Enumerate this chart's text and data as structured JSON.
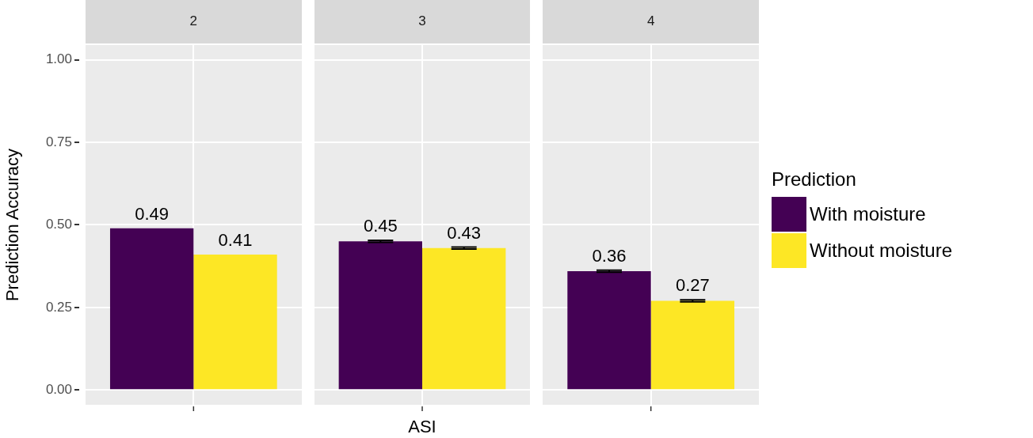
{
  "chart_data": {
    "type": "bar",
    "xlabel": "ASI",
    "ylabel": "Prediction Accuracy",
    "legend_title": "Prediction",
    "categories": [
      "2",
      "3",
      "4"
    ],
    "ylim": [
      -0.045,
      1.045
    ],
    "yticks": [
      {
        "value": 0,
        "label": "0.00"
      },
      {
        "value": 0.25,
        "label": "0.25"
      },
      {
        "value": 0.5,
        "label": "0.50"
      },
      {
        "value": 0.75,
        "label": "0.75"
      },
      {
        "value": 1,
        "label": "1.00"
      }
    ],
    "grid": true,
    "data_labels": true,
    "legend": "right",
    "series": [
      {
        "name": "With moisture",
        "color": "#440154",
        "values": [
          0.49,
          0.45,
          0.36
        ],
        "errors": [
          null,
          0.003,
          0.003
        ]
      },
      {
        "name": "Without moisture",
        "color": "#fde725",
        "values": [
          0.41,
          0.43,
          0.27
        ],
        "errors": [
          null,
          0.003,
          0.003
        ]
      }
    ]
  }
}
